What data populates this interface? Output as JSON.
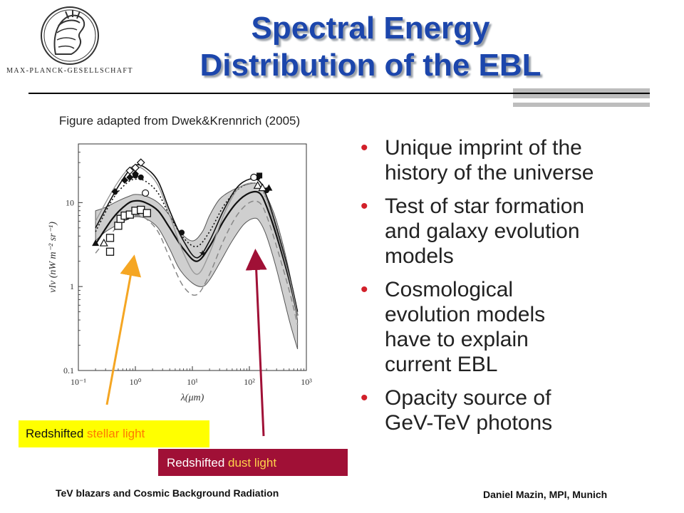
{
  "header": {
    "title_line1": "Spectral Energy",
    "title_line2": "Distribution of the EBL",
    "logo_text": "MAX-PLANCK-GESELLSCHAFT"
  },
  "figure": {
    "caption": "Figure adapted from Dwek&Krennrich (2005)"
  },
  "bullets": [
    "Unique imprint of the history of the universe",
    "Test of star formation and galaxy evolution models",
    "Cosmological evolution models have to explain current EBL",
    "Opacity source of GeV-TeV photons"
  ],
  "labels": {
    "stellar_prefix": "Redshifted",
    "stellar_highlight": "stellar light",
    "dust_prefix": "Redshifted",
    "dust_highlight": "dust light"
  },
  "footer": {
    "left": "TeV blazars and Cosmic Background Radiation",
    "right": "Daniel Mazin, MPI, Munich"
  },
  "colors": {
    "title": "#1c46ac",
    "bullet_dot": "#d2202a",
    "stellar_box": "#ffff00",
    "dust_box": "#a01036",
    "stellar_arrow": "#f5a623",
    "dust_arrow": "#a01036"
  },
  "chart_data": {
    "type": "line",
    "xlabel": "λ(μm)",
    "ylabel": "νIν (nW m⁻² sr⁻¹)",
    "x_scale": "log",
    "y_scale": "log",
    "xlim": [
      0.1,
      1000
    ],
    "ylim": [
      0.1,
      50
    ],
    "x_ticks": [
      {
        "value": 0.1,
        "label": "10⁻¹"
      },
      {
        "value": 1,
        "label": "10⁰"
      },
      {
        "value": 10,
        "label": "10¹"
      },
      {
        "value": 100,
        "label": "10²"
      },
      {
        "value": 1000,
        "label": "10³"
      }
    ],
    "y_ticks": [
      {
        "value": 0.1,
        "label": "0.1"
      },
      {
        "value": 1,
        "label": "1"
      },
      {
        "value": 10,
        "label": "10"
      }
    ],
    "band": {
      "x": [
        0.2,
        0.3,
        0.5,
        0.8,
        1,
        1.5,
        2.5,
        4,
        6,
        10,
        15,
        20,
        30,
        50,
        80,
        120,
        150,
        200,
        300,
        500,
        700
      ],
      "lo": [
        3.5,
        4.5,
        5.5,
        6.5,
        6.8,
        6.5,
        5.0,
        2.8,
        1.6,
        1.1,
        1.0,
        1.2,
        1.9,
        3.5,
        5.5,
        6.5,
        6.0,
        4.0,
        1.6,
        0.4,
        0.18
      ],
      "hi": [
        8.0,
        8.8,
        10.5,
        12,
        12.5,
        12,
        10,
        7,
        4.5,
        3.5,
        4.5,
        7,
        11,
        14,
        16,
        17,
        16,
        12,
        6,
        1.5,
        0.4
      ]
    },
    "series": [
      {
        "style": "black-solid-upper",
        "x": [
          0.2,
          0.4,
          0.7,
          1,
          1.5,
          2.5,
          4,
          7,
          12,
          20,
          35,
          60,
          100,
          150,
          200,
          300,
          500,
          700
        ],
        "y": [
          5,
          12,
          22,
          28,
          26,
          18,
          8,
          3.5,
          2.2,
          3.5,
          8,
          15,
          19,
          18,
          12,
          5,
          1.4,
          0.5
        ]
      },
      {
        "style": "black-dotted",
        "x": [
          0.2,
          0.4,
          0.7,
          1,
          1.5,
          2.5,
          4,
          7,
          12,
          20,
          35,
          60,
          100,
          150,
          200,
          300,
          500,
          700
        ],
        "y": [
          4.5,
          11,
          17,
          19,
          18,
          13,
          7,
          3.8,
          3.0,
          4.5,
          9,
          14,
          17,
          16,
          11,
          5,
          1.4,
          0.5
        ]
      },
      {
        "style": "black-solid-mid",
        "x": [
          0.2,
          0.4,
          0.7,
          1,
          1.5,
          2.5,
          4,
          7,
          12,
          20,
          35,
          60,
          100,
          150,
          200,
          300,
          500,
          700
        ],
        "y": [
          3.2,
          6.5,
          9.5,
          10.5,
          10,
          8,
          5,
          2.8,
          2.0,
          3.0,
          6,
          10,
          13,
          13,
          9,
          4,
          1.2,
          0.45
        ]
      },
      {
        "style": "gray-dashed",
        "x": [
          0.2,
          0.4,
          0.7,
          1,
          1.5,
          2.5,
          4,
          7,
          12,
          20,
          35,
          60,
          100,
          150,
          200,
          300,
          500,
          700
        ],
        "y": [
          2.5,
          4.5,
          6.5,
          7,
          6.5,
          4.5,
          2.2,
          1.0,
          0.8,
          1.4,
          3.5,
          7,
          10,
          10,
          7,
          3,
          0.9,
          0.35
        ]
      },
      {
        "style": "gray-solid-upper",
        "x": [
          0.2,
          0.4,
          0.7,
          1,
          1.5,
          2.5,
          4,
          7,
          12,
          20,
          35,
          60,
          100,
          150,
          200,
          300,
          500,
          700
        ],
        "y": [
          6,
          14,
          24,
          27,
          24,
          16,
          7,
          2.5,
          1.4,
          2.5,
          7,
          14,
          17,
          16,
          11,
          4.5,
          1.3,
          0.45
        ]
      }
    ],
    "markers": [
      {
        "symbol": "open-square",
        "points": [
          [
            0.36,
            2.6
          ],
          [
            0.36,
            3.8
          ],
          [
            0.5,
            5.3
          ],
          [
            0.55,
            6.4
          ],
          [
            0.65,
            7.0
          ],
          [
            0.8,
            7.2
          ],
          [
            1.0,
            8.0
          ],
          [
            1.25,
            8.2
          ],
          [
            1.6,
            7.5
          ]
        ]
      },
      {
        "symbol": "filled-diamond",
        "points": [
          [
            0.44,
            13.5
          ],
          [
            0.65,
            18.5
          ],
          [
            0.8,
            20
          ],
          [
            1.0,
            22
          ]
        ]
      },
      {
        "symbol": "open-diamond",
        "points": [
          [
            0.8,
            24
          ],
          [
            1.0,
            26
          ],
          [
            1.25,
            30
          ]
        ]
      },
      {
        "symbol": "filled-circle",
        "points": [
          [
            1.0,
            21
          ],
          [
            1.25,
            20
          ],
          [
            6.5,
            4.4
          ],
          [
            140,
            20
          ],
          [
            200,
            14
          ]
        ]
      },
      {
        "symbol": "open-circle",
        "points": [
          [
            1.5,
            13
          ],
          [
            120,
            20
          ]
        ]
      },
      {
        "symbol": "filled-square",
        "points": [
          [
            150,
            21
          ]
        ]
      },
      {
        "symbol": "open-triangle",
        "points": [
          [
            0.28,
            3.3
          ],
          [
            140,
            16
          ],
          [
            170,
            15
          ]
        ]
      },
      {
        "symbol": "filled-triangle",
        "points": [
          [
            0.2,
            3.3
          ],
          [
            220,
            15
          ]
        ]
      },
      {
        "symbol": "star",
        "points": [
          [
            15,
            2.5
          ]
        ]
      }
    ]
  }
}
